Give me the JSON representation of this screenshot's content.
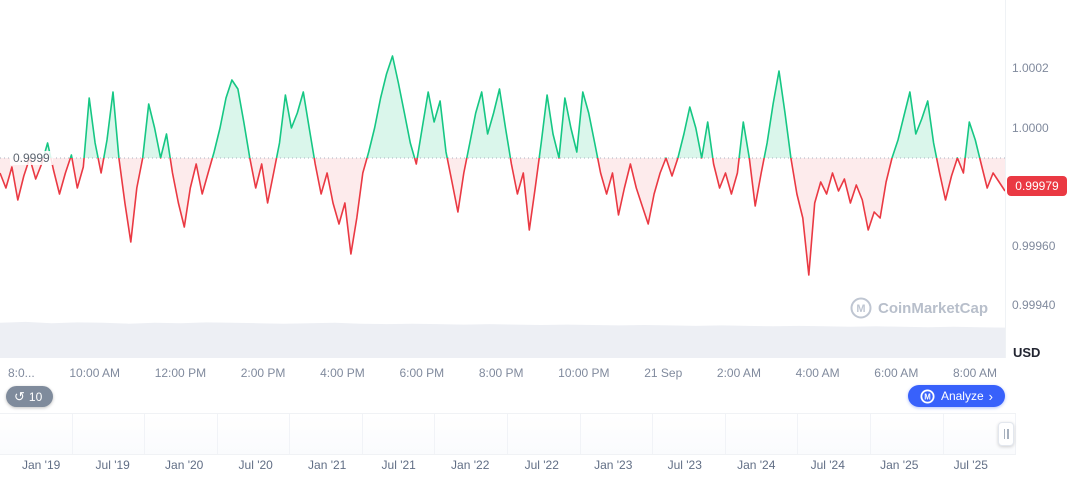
{
  "colors": {
    "up": "#16c784",
    "down": "#ea3943",
    "up_fill": "rgba(22,199,132,0.16)",
    "down_fill": "rgba(234,57,67,0.10)",
    "baseline": "#aab2bf",
    "accent_blue": "#3861fb",
    "badge_bg": "#ea3943",
    "volume_fill": "#edeff4"
  },
  "baseline_label": "0.9999",
  "y_axis": {
    "labels": [
      "1.0002",
      "1.0000",
      "0.99960",
      "0.99940"
    ],
    "current_price": "0.99979",
    "unit": "USD"
  },
  "x_axis": {
    "labels": [
      "8:0...",
      "10:00 AM",
      "12:00 PM",
      "2:00 PM",
      "4:00 PM",
      "6:00 PM",
      "8:00 PM",
      "10:00 PM",
      "21 Sep",
      "2:00 AM",
      "4:00 AM",
      "6:00 AM",
      "8:00 AM"
    ]
  },
  "toolbar": {
    "history_count": "10",
    "analyze_label": "Analyze"
  },
  "icons": {
    "history": "↺",
    "chevron_right": "›",
    "cmc_logo_letter": "M"
  },
  "watermark": {
    "text": "CoinMarketCap"
  },
  "range_axis": {
    "labels": [
      "Jan '19",
      "Jul '19",
      "Jan '20",
      "Jul '20",
      "Jan '21",
      "Jul '21",
      "Jan '22",
      "Jul '22",
      "Jan '23",
      "Jul '23",
      "Jan '24",
      "Jul '24",
      "Jan '25",
      "Jul '25"
    ]
  },
  "chart_data": {
    "type": "line",
    "title": "",
    "ylabel": "USD",
    "baseline": 0.9999,
    "current_value": 0.99979,
    "y_ticks": [
      1.0002,
      1.0,
      0.9996,
      0.9994
    ],
    "ylim": [
      0.9994,
      1.00035
    ],
    "grid": false,
    "legend": false,
    "x_ticks": [
      "8:00 AM",
      "10:00 AM",
      "12:00 PM",
      "2:00 PM",
      "4:00 PM",
      "6:00 PM",
      "8:00 PM",
      "10:00 PM",
      "21 Sep",
      "2:00 AM",
      "4:00 AM",
      "6:00 AM",
      "8:00 AM"
    ],
    "series": [
      {
        "name": "price",
        "values": [
          0.99985,
          0.9998,
          0.99987,
          0.99976,
          0.99984,
          0.9999,
          0.99983,
          0.99988,
          0.99995,
          0.99986,
          0.99978,
          0.99985,
          0.99991,
          0.9998,
          0.99987,
          1.0001,
          0.99995,
          0.99985,
          0.99996,
          1.00012,
          0.9999,
          0.99975,
          0.99962,
          0.9998,
          0.9999,
          1.00008,
          1.0,
          0.9999,
          0.99998,
          0.99985,
          0.99975,
          0.99967,
          0.9998,
          0.99988,
          0.99978,
          0.99985,
          0.99992,
          1.0,
          1.0001,
          1.00016,
          1.00013,
          1.00002,
          0.9999,
          0.9998,
          0.99988,
          0.99975,
          0.99985,
          0.99995,
          1.00011,
          1.0,
          1.00005,
          1.00012,
          1.0,
          0.99988,
          0.99978,
          0.99985,
          0.99975,
          0.99968,
          0.99975,
          0.99958,
          0.9997,
          0.99985,
          0.99992,
          1.0,
          1.0001,
          1.00018,
          1.00024,
          1.00015,
          1.00005,
          0.99995,
          0.99988,
          1.0,
          1.00012,
          1.00002,
          1.00009,
          0.99992,
          0.99982,
          0.99972,
          0.99985,
          0.99995,
          1.00005,
          1.00012,
          0.99998,
          1.00005,
          1.00013,
          1.0,
          0.99988,
          0.99978,
          0.99985,
          0.99966,
          0.9998,
          0.99995,
          1.00011,
          0.99998,
          0.9999,
          1.0001,
          1.0,
          0.99992,
          1.00012,
          1.00005,
          0.99995,
          0.99985,
          0.99978,
          0.99985,
          0.99971,
          0.9998,
          0.99988,
          0.9998,
          0.99974,
          0.99968,
          0.99978,
          0.99985,
          0.9999,
          0.99984,
          0.9999,
          0.99998,
          1.00007,
          1.0,
          0.9999,
          1.00002,
          0.99988,
          0.9998,
          0.99985,
          0.99978,
          0.99985,
          1.00002,
          0.9999,
          0.99974,
          0.99985,
          0.99995,
          1.00008,
          1.00019,
          1.00005,
          0.9999,
          0.99978,
          0.9997,
          0.99951,
          0.99975,
          0.99982,
          0.99978,
          0.99985,
          0.99979,
          0.99983,
          0.99975,
          0.99981,
          0.99976,
          0.99966,
          0.99972,
          0.9997,
          0.99982,
          0.9999,
          0.99996,
          1.00004,
          1.00012,
          0.99998,
          1.00003,
          1.00009,
          0.99995,
          0.99985,
          0.99976,
          0.99984,
          0.9999,
          0.99985,
          1.00002,
          0.99996,
          0.99988,
          0.9998,
          0.99985,
          0.99982,
          0.99979
        ]
      }
    ],
    "volume_profile": [
      0.8,
      0.82,
      0.79,
      0.81,
      0.8,
      0.78,
      0.8,
      0.79,
      0.81,
      0.8,
      0.79,
      0.78,
      0.79,
      0.8,
      0.78,
      0.77,
      0.78,
      0.77,
      0.76,
      0.77,
      0.76,
      0.75,
      0.76,
      0.75,
      0.74,
      0.75,
      0.74,
      0.73,
      0.74,
      0.73,
      0.72,
      0.73,
      0.72,
      0.71,
      0.72,
      0.71,
      0.7,
      0.71,
      0.7,
      0.69
    ],
    "range_ticks": [
      "Jan '19",
      "Jul '19",
      "Jan '20",
      "Jul '20",
      "Jan '21",
      "Jul '21",
      "Jan '22",
      "Jul '22",
      "Jan '23",
      "Jul '23",
      "Jan '24",
      "Jul '24",
      "Jan '25",
      "Jul '25"
    ]
  }
}
